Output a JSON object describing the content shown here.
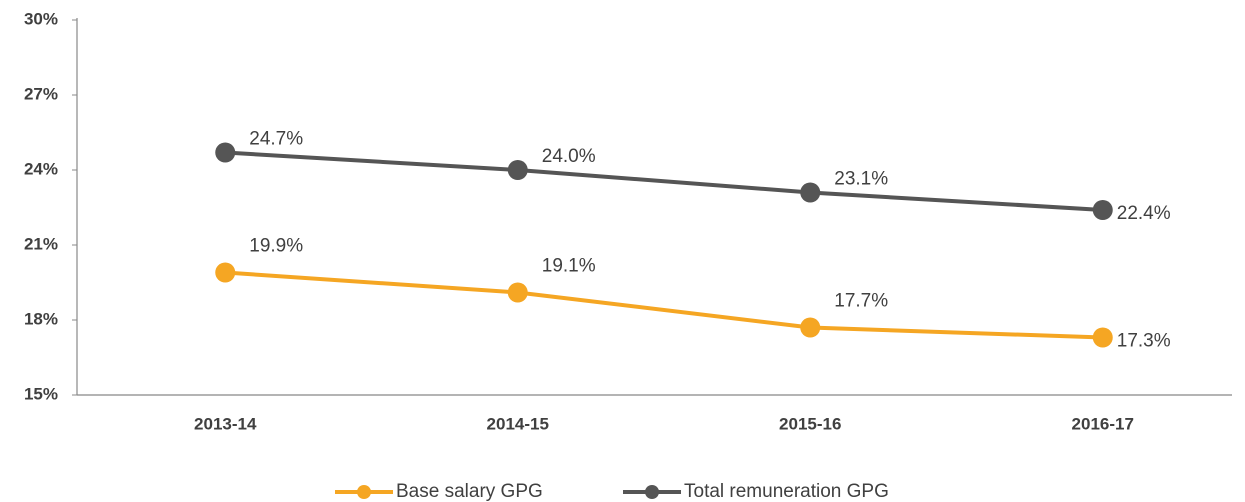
{
  "chart_data": {
    "type": "line",
    "categories": [
      "2013-14",
      "2014-15",
      "2015-16",
      "2016-17"
    ],
    "series": [
      {
        "name": "Base salary GPG",
        "color": "#f5a623",
        "values": [
          19.9,
          19.1,
          17.7,
          17.3
        ],
        "value_labels": [
          "19.9%",
          "19.1%",
          "17.7%",
          "17.3%"
        ]
      },
      {
        "name": "Total remuneration GPG",
        "color": "#555555",
        "values": [
          24.7,
          24.0,
          23.1,
          22.4
        ],
        "value_labels": [
          "24.7%",
          "24.0%",
          "23.1%",
          "22.4%"
        ]
      }
    ],
    "ylim": [
      15,
      30
    ],
    "yticks": [
      {
        "value": 15,
        "label": "15%"
      },
      {
        "value": 18,
        "label": "18%"
      },
      {
        "value": 21,
        "label": "21%"
      },
      {
        "value": 24,
        "label": "24%"
      },
      {
        "value": 27,
        "label": "27%"
      },
      {
        "value": 30,
        "label": "30%"
      }
    ],
    "grid": false,
    "legend": "bottom"
  }
}
